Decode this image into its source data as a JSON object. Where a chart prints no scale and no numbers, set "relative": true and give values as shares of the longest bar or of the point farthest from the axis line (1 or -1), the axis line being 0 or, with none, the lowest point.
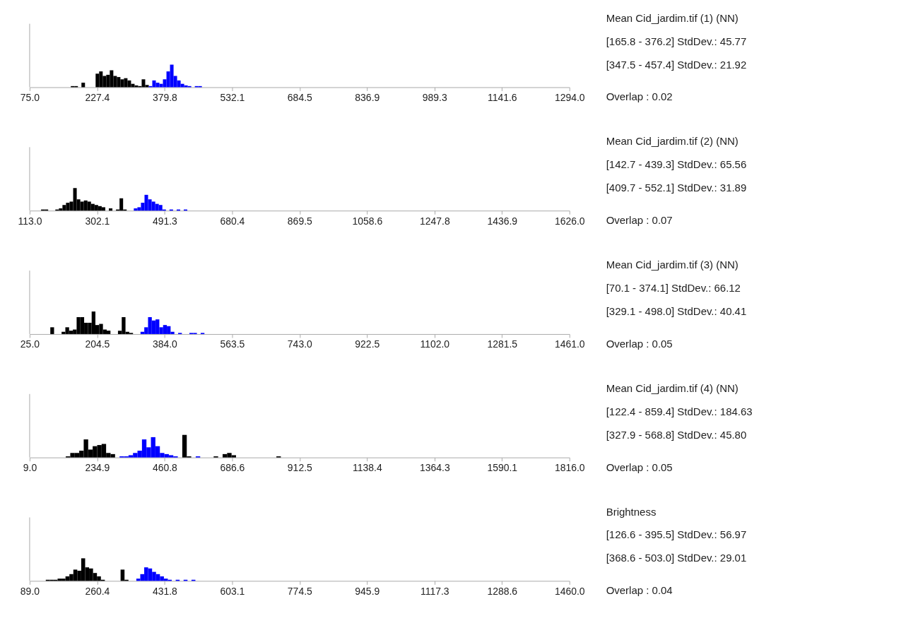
{
  "chart_data": [
    {
      "type": "bar",
      "relative": true,
      "xlim": [
        75,
        1294
      ],
      "xticks": [
        {
          "value": 75,
          "label": "75.0"
        },
        {
          "value": 227.375,
          "label": "227.4"
        },
        {
          "value": 379.75,
          "label": "379.8"
        },
        {
          "value": 532.125,
          "label": "532.1"
        },
        {
          "value": 684.5,
          "label": "684.5"
        },
        {
          "value": 836.875,
          "label": "836.9"
        },
        {
          "value": 989.25,
          "label": "989.3"
        },
        {
          "value": 1141.625,
          "label": "1141.6"
        },
        {
          "value": 1294,
          "label": "1294.0"
        }
      ],
      "x": [
        172,
        180,
        188,
        196,
        204,
        212,
        220,
        228,
        236,
        244,
        252,
        260,
        268,
        276,
        284,
        292,
        300,
        308,
        316,
        324,
        332,
        340,
        348,
        356,
        364,
        372,
        380,
        388,
        396,
        404,
        412,
        420,
        428,
        436,
        444,
        452,
        460
      ],
      "values": [
        0.05,
        0.05,
        null,
        0.2,
        null,
        null,
        null,
        0.6,
        0.7,
        0.5,
        0.55,
        0.75,
        0.5,
        0.45,
        0.35,
        0.4,
        0.3,
        0.15,
        0.08,
        0.05,
        0.35,
        0.1,
        0.05,
        0.3,
        0.2,
        0.15,
        0.35,
        0.7,
        1.0,
        0.5,
        0.3,
        0.15,
        0.08,
        0.05,
        null,
        0.05,
        0.05
      ],
      "colors": [
        "#000000",
        "#000000",
        "#000000",
        "#000000",
        "#000000",
        "#000000",
        "#000000",
        "#000000",
        "#000000",
        "#000000",
        "#000000",
        "#000000",
        "#000000",
        "#000000",
        "#000000",
        "#000000",
        "#000000",
        "#000000",
        "#000000",
        "#000000",
        "#000000",
        "#000000",
        "#0000ff",
        "#0000ff",
        "#0000ff",
        "#0000ff",
        "#0000ff",
        "#0000ff",
        "#0000ff",
        "#0000ff",
        "#0000ff",
        "#0000ff",
        "#0000ff",
        "#0000ff",
        "#0000ff",
        "#0000ff",
        "#0000ff"
      ],
      "annotations": [
        "Mean Cid_jardim.tif (1) (NN)",
        "[165.8 - 376.2] StdDev.: 45.77",
        "[347.5 - 457.4] StdDev.: 21.92",
        "Overlap : 0.02"
      ]
    },
    {
      "type": "bar",
      "relative": true,
      "xlim": [
        113,
        1626
      ],
      "xticks": [
        {
          "value": 113,
          "label": "113.0"
        },
        {
          "value": 302.125,
          "label": "302.1"
        },
        {
          "value": 491.25,
          "label": "491.3"
        },
        {
          "value": 680.375,
          "label": "680.4"
        },
        {
          "value": 869.5,
          "label": "869.5"
        },
        {
          "value": 1058.625,
          "label": "1058.6"
        },
        {
          "value": 1247.75,
          "label": "1247.8"
        },
        {
          "value": 1436.875,
          "label": "1436.9"
        },
        {
          "value": 1626,
          "label": "1626.0"
        }
      ],
      "x": [
        150,
        160,
        170,
        180,
        190,
        200,
        210,
        220,
        230,
        240,
        250,
        260,
        270,
        280,
        290,
        300,
        310,
        320,
        330,
        340,
        350,
        360,
        370,
        380,
        390,
        400,
        410,
        420,
        430,
        440,
        450,
        460,
        470,
        480,
        490,
        500,
        510,
        520,
        530,
        540,
        550
      ],
      "values": [
        0.05,
        0.05,
        null,
        null,
        0.05,
        0.1,
        0.25,
        0.35,
        0.4,
        1.0,
        0.5,
        0.4,
        0.45,
        0.4,
        0.3,
        0.25,
        0.2,
        0.15,
        null,
        0.1,
        null,
        0.05,
        0.55,
        0.05,
        null,
        null,
        0.1,
        0.15,
        0.35,
        0.7,
        0.5,
        0.4,
        0.3,
        0.25,
        0.05,
        null,
        0.05,
        null,
        0.05,
        null,
        0.05
      ],
      "colors": [
        "#000000",
        "#000000",
        "#000000",
        "#000000",
        "#000000",
        "#000000",
        "#000000",
        "#000000",
        "#000000",
        "#000000",
        "#000000",
        "#000000",
        "#000000",
        "#000000",
        "#000000",
        "#000000",
        "#000000",
        "#000000",
        "#000000",
        "#000000",
        "#000000",
        "#000000",
        "#000000",
        "#000000",
        "#0000ff",
        "#0000ff",
        "#0000ff",
        "#0000ff",
        "#0000ff",
        "#0000ff",
        "#0000ff",
        "#0000ff",
        "#0000ff",
        "#0000ff",
        "#0000ff",
        "#0000ff",
        "#0000ff",
        "#0000ff",
        "#0000ff",
        "#0000ff",
        "#0000ff"
      ],
      "annotations": [
        "Mean Cid_jardim.tif (2) (NN)",
        "[142.7 - 439.3] StdDev.: 65.56",
        "[409.7 - 552.1] StdDev.: 31.89",
        "Overlap : 0.07"
      ]
    },
    {
      "type": "bar",
      "relative": true,
      "xlim": [
        25,
        1461
      ],
      "xticks": [
        {
          "value": 25,
          "label": "25.0"
        },
        {
          "value": 204.5,
          "label": "204.5"
        },
        {
          "value": 384,
          "label": "384.0"
        },
        {
          "value": 563.5,
          "label": "563.5"
        },
        {
          "value": 743,
          "label": "743.0"
        },
        {
          "value": 922.5,
          "label": "922.5"
        },
        {
          "value": 1102,
          "label": "1102.0"
        },
        {
          "value": 1281.5,
          "label": "1281.5"
        },
        {
          "value": 1461,
          "label": "1461.0"
        }
      ],
      "x": [
        85,
        95,
        105,
        115,
        125,
        135,
        145,
        155,
        165,
        175,
        185,
        195,
        205,
        215,
        225,
        235,
        245,
        255,
        265,
        275,
        285,
        295,
        305,
        315,
        325,
        335,
        345,
        355,
        365,
        375,
        385,
        395,
        405,
        415,
        425,
        435,
        445,
        455,
        465,
        475,
        485
      ],
      "values": [
        0.3,
        null,
        null,
        0.1,
        0.3,
        0.15,
        0.2,
        0.75,
        0.75,
        0.5,
        0.5,
        1.0,
        0.4,
        0.45,
        0.2,
        0.15,
        null,
        null,
        0.15,
        0.75,
        0.1,
        0.05,
        null,
        null,
        0.1,
        0.3,
        0.75,
        0.6,
        0.65,
        0.3,
        0.4,
        0.35,
        0.1,
        null,
        0.05,
        null,
        null,
        0.05,
        0.05,
        null,
        0.05
      ],
      "colors": [
        "#000000",
        "#000000",
        "#000000",
        "#000000",
        "#000000",
        "#000000",
        "#000000",
        "#000000",
        "#000000",
        "#000000",
        "#000000",
        "#000000",
        "#000000",
        "#000000",
        "#000000",
        "#000000",
        "#000000",
        "#000000",
        "#000000",
        "#000000",
        "#000000",
        "#000000",
        "#000000",
        "#000000",
        "#0000ff",
        "#0000ff",
        "#0000ff",
        "#0000ff",
        "#0000ff",
        "#0000ff",
        "#0000ff",
        "#0000ff",
        "#0000ff",
        "#0000ff",
        "#0000ff",
        "#0000ff",
        "#0000ff",
        "#0000ff",
        "#0000ff",
        "#0000ff",
        "#0000ff"
      ],
      "annotations": [
        "Mean Cid_jardim.tif (3) (NN)",
        "[70.1 - 374.1] StdDev.: 66.12",
        "[329.1 - 498.0] StdDev.: 40.41",
        "Overlap : 0.05"
      ]
    },
    {
      "type": "bar",
      "relative": true,
      "xlim": [
        9,
        1816
      ],
      "xticks": [
        {
          "value": 9,
          "label": "9.0"
        },
        {
          "value": 234.875,
          "label": "234.9"
        },
        {
          "value": 460.75,
          "label": "460.8"
        },
        {
          "value": 686.625,
          "label": "686.6"
        },
        {
          "value": 912.5,
          "label": "912.5"
        },
        {
          "value": 1138.375,
          "label": "1138.4"
        },
        {
          "value": 1364.25,
          "label": "1364.3"
        },
        {
          "value": 1590.125,
          "label": "1590.1"
        },
        {
          "value": 1816,
          "label": "1816.0"
        }
      ],
      "x": [
        137.5,
        152.5,
        167.5,
        182.5,
        197.5,
        212.5,
        227.5,
        242.5,
        257.5,
        272.5,
        287.5,
        302.5,
        317.5,
        332.5,
        347.5,
        362.5,
        377.5,
        392.5,
        407.5,
        422.5,
        437.5,
        452.5,
        467.5,
        482.5,
        497.5,
        512.5,
        527.5,
        542.5,
        557.5,
        572.5,
        587.5,
        602.5,
        617.5,
        632.5,
        647.5,
        662.5,
        677.5,
        692.5,
        707.5,
        722.5,
        737.5,
        752.5,
        767.5,
        782.5,
        797.5,
        812.5,
        827.5,
        842.5
      ],
      "values": [
        0.05,
        0.2,
        0.2,
        0.3,
        0.8,
        0.35,
        0.5,
        0.55,
        0.6,
        0.2,
        0.15,
        null,
        0.05,
        0.05,
        0.1,
        0.2,
        0.3,
        0.8,
        0.45,
        0.9,
        0.5,
        0.2,
        0.15,
        0.1,
        0.05,
        null,
        1.0,
        0.05,
        null,
        0.05,
        null,
        null,
        null,
        0.05,
        null,
        0.15,
        0.2,
        0.1,
        null,
        null,
        null,
        null,
        null,
        null,
        null,
        null,
        null,
        0.05
      ],
      "colors": [
        "#000000",
        "#000000",
        "#000000",
        "#000000",
        "#000000",
        "#000000",
        "#000000",
        "#000000",
        "#000000",
        "#000000",
        "#000000",
        "#000000",
        "#0000ff",
        "#0000ff",
        "#0000ff",
        "#0000ff",
        "#0000ff",
        "#0000ff",
        "#0000ff",
        "#0000ff",
        "#0000ff",
        "#0000ff",
        "#0000ff",
        "#0000ff",
        "#0000ff",
        "#000000",
        "#000000",
        "#000000",
        "#000000",
        "#0000ff",
        "#000000",
        "#000000",
        "#000000",
        "#000000",
        "#000000",
        "#000000",
        "#000000",
        "#000000",
        "#000000",
        "#000000",
        "#000000",
        "#000000",
        "#000000",
        "#000000",
        "#000000",
        "#000000",
        "#000000",
        "#000000"
      ],
      "annotations": [
        "Mean Cid_jardim.tif (4) (NN)",
        "[122.4 - 859.4] StdDev.: 184.63",
        "[327.9 - 568.8] StdDev.: 45.80",
        "Overlap : 0.05"
      ]
    },
    {
      "type": "bar",
      "relative": true,
      "xlim": [
        89,
        1460
      ],
      "xticks": [
        {
          "value": 89,
          "label": "89.0"
        },
        {
          "value": 260.375,
          "label": "260.4"
        },
        {
          "value": 431.75,
          "label": "431.8"
        },
        {
          "value": 603.125,
          "label": "603.1"
        },
        {
          "value": 774.5,
          "label": "774.5"
        },
        {
          "value": 945.875,
          "label": "945.9"
        },
        {
          "value": 1117.25,
          "label": "1117.3"
        },
        {
          "value": 1288.625,
          "label": "1288.6"
        },
        {
          "value": 1460,
          "label": "1460.0"
        }
      ],
      "x": [
        135,
        145,
        155,
        165,
        175,
        185,
        195,
        205,
        215,
        225,
        235,
        245,
        255,
        265,
        275,
        285,
        295,
        305,
        315,
        325,
        335,
        345,
        355,
        365,
        375,
        385,
        395,
        405,
        415,
        425,
        435,
        445,
        455,
        465,
        475,
        485,
        495,
        505
      ],
      "values": [
        0.05,
        0.05,
        0.05,
        0.1,
        0.1,
        0.2,
        0.3,
        0.5,
        0.45,
        1.0,
        0.6,
        0.55,
        0.35,
        0.2,
        0.05,
        null,
        null,
        null,
        null,
        0.5,
        0.05,
        null,
        null,
        0.1,
        0.3,
        0.6,
        0.55,
        0.4,
        0.3,
        0.2,
        0.1,
        0.05,
        null,
        0.05,
        null,
        0.05,
        null,
        0.05
      ],
      "colors": [
        "#000000",
        "#000000",
        "#000000",
        "#000000",
        "#000000",
        "#000000",
        "#000000",
        "#000000",
        "#000000",
        "#000000",
        "#000000",
        "#000000",
        "#000000",
        "#000000",
        "#000000",
        "#000000",
        "#000000",
        "#000000",
        "#000000",
        "#000000",
        "#000000",
        "#000000",
        "#000000",
        "#0000ff",
        "#0000ff",
        "#0000ff",
        "#0000ff",
        "#0000ff",
        "#0000ff",
        "#0000ff",
        "#0000ff",
        "#0000ff",
        "#0000ff",
        "#0000ff",
        "#0000ff",
        "#0000ff",
        "#0000ff",
        "#0000ff"
      ],
      "annotations": [
        "Brightness",
        "[126.6 - 395.5] StdDev.: 56.97",
        "[368.6 - 503.0] StdDev.: 29.01",
        "Overlap : 0.04"
      ]
    }
  ]
}
